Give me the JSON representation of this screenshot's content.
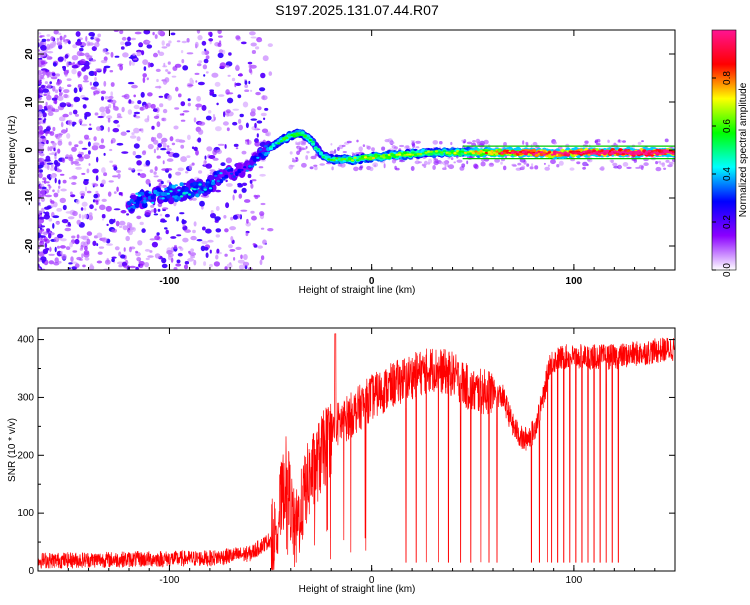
{
  "title": "S197.2025.131.07.44.R07",
  "chart_data": [
    {
      "type": "heatmap",
      "xlabel": "Height of straight line (km)",
      "ylabel": "Frequency (Hz)",
      "xlim": [
        -165,
        150
      ],
      "ylim": [
        -25,
        25
      ],
      "x_ticks": [
        -100,
        0,
        100
      ],
      "y_ticks": [
        20,
        10,
        0,
        -10,
        -20
      ],
      "colorbar": {
        "label": "Normalized spectral amplitude",
        "range": [
          0,
          1
        ],
        "ticks": [
          0.0,
          0.2,
          0.4,
          0.6,
          0.8
        ],
        "colors": [
          "#ffffff",
          "#8b00ff",
          "#0000ff",
          "#00ffff",
          "#00ff00",
          "#ffff00",
          "#ff0000",
          "#ff1493"
        ]
      },
      "ridge": [
        {
          "x": -120,
          "y": -11,
          "amp": 0.3
        },
        {
          "x": -100,
          "y": -9,
          "amp": 0.35
        },
        {
          "x": -85,
          "y": -8,
          "amp": 0.35
        },
        {
          "x": -75,
          "y": -6,
          "amp": 0.3
        },
        {
          "x": -65,
          "y": -4,
          "amp": 0.25
        },
        {
          "x": -55,
          "y": -1,
          "amp": 0.3
        },
        {
          "x": -48,
          "y": 1,
          "amp": 0.4
        },
        {
          "x": -40,
          "y": 3,
          "amp": 0.5
        },
        {
          "x": -35,
          "y": 3.5,
          "amp": 0.5
        },
        {
          "x": -30,
          "y": 2,
          "amp": 0.45
        },
        {
          "x": -25,
          "y": -1,
          "amp": 0.4
        },
        {
          "x": -20,
          "y": -2,
          "amp": 0.45
        },
        {
          "x": -10,
          "y": -2,
          "amp": 0.5
        },
        {
          "x": 0,
          "y": -1.5,
          "amp": 0.55
        },
        {
          "x": 15,
          "y": -1,
          "amp": 0.55
        },
        {
          "x": 30,
          "y": -0.5,
          "amp": 0.5
        },
        {
          "x": 45,
          "y": -0.5,
          "amp": 0.55
        },
        {
          "x": 75,
          "y": -0.5,
          "amp": 0.85
        },
        {
          "x": 90,
          "y": -0.8,
          "amp": 0.85
        },
        {
          "x": 105,
          "y": -0.5,
          "amp": 0.85
        },
        {
          "x": 130,
          "y": -0.5,
          "amp": 0.95
        },
        {
          "x": 150,
          "y": -0.5,
          "amp": 0.95
        }
      ]
    },
    {
      "type": "line",
      "xlabel": "Height of straight line (km)",
      "ylabel": "SNR (10 * v/v)",
      "xlim": [
        -165,
        150
      ],
      "ylim": [
        0,
        420
      ],
      "x_ticks": [
        -100,
        0,
        100
      ],
      "y_ticks": [
        0,
        100,
        200,
        300,
        400
      ],
      "color": "#ff0000",
      "profile": [
        {
          "x": -165,
          "y": 18
        },
        {
          "x": -80,
          "y": 22
        },
        {
          "x": -60,
          "y": 30
        },
        {
          "x": -48,
          "y": 60
        },
        {
          "x": -42,
          "y": 170
        },
        {
          "x": -38,
          "y": 60
        },
        {
          "x": -32,
          "y": 150
        },
        {
          "x": -25,
          "y": 200
        },
        {
          "x": -18,
          "y": 250
        },
        {
          "x": -10,
          "y": 270
        },
        {
          "x": 0,
          "y": 300
        },
        {
          "x": 15,
          "y": 330
        },
        {
          "x": 30,
          "y": 350
        },
        {
          "x": 40,
          "y": 340
        },
        {
          "x": 50,
          "y": 310
        },
        {
          "x": 60,
          "y": 310
        },
        {
          "x": 65,
          "y": 300
        },
        {
          "x": 70,
          "y": 250
        },
        {
          "x": 75,
          "y": 225
        },
        {
          "x": 80,
          "y": 240
        },
        {
          "x": 85,
          "y": 300
        },
        {
          "x": 88,
          "y": 360
        },
        {
          "x": 95,
          "y": 370
        },
        {
          "x": 120,
          "y": 370
        },
        {
          "x": 150,
          "y": 385
        }
      ],
      "dropouts": [
        17,
        22,
        27,
        33,
        38,
        44,
        49,
        54,
        58,
        62,
        79,
        83,
        87,
        89,
        92,
        95,
        98,
        101,
        104,
        107,
        110,
        113,
        116,
        119,
        122
      ]
    }
  ]
}
